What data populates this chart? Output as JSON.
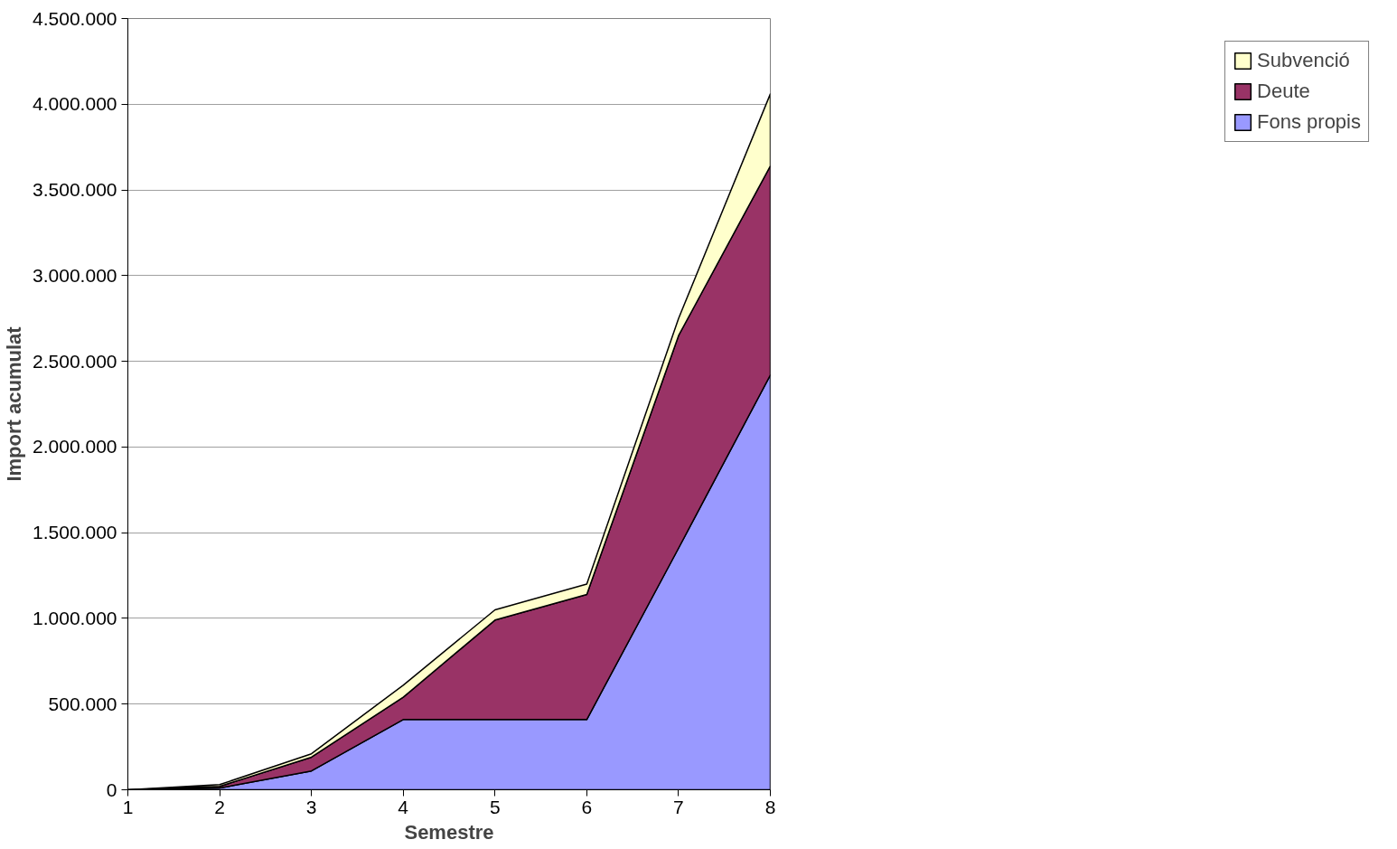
{
  "chart_data": {
    "type": "area",
    "stacked": true,
    "xlabel": "Semestre",
    "ylabel": "Import acumulat",
    "x": [
      1,
      2,
      3,
      4,
      5,
      6,
      7,
      8
    ],
    "series": [
      {
        "name": "Fons propis",
        "color": "#9999ff",
        "values": [
          0,
          10000,
          110000,
          410000,
          410000,
          410000,
          1410000,
          2420000
        ]
      },
      {
        "name": "Deute",
        "color": "#993366",
        "values": [
          0,
          10000,
          80000,
          130000,
          580000,
          730000,
          1240000,
          1220000
        ]
      },
      {
        "name": "Subvenció",
        "color": "#ffffcc",
        "values": [
          0,
          10000,
          20000,
          70000,
          60000,
          60000,
          100000,
          420000
        ]
      }
    ],
    "xlim": [
      1,
      8
    ],
    "xticks": [
      1,
      2,
      3,
      4,
      5,
      6,
      7,
      8
    ],
    "ylim": [
      0,
      4500000
    ],
    "yticks": [
      {
        "value": 0,
        "label": "0"
      },
      {
        "value": 500000,
        "label": "500.000"
      },
      {
        "value": 1000000,
        "label": "1.000.000"
      },
      {
        "value": 1500000,
        "label": "1.500.000"
      },
      {
        "value": 2000000,
        "label": "2.000.000"
      },
      {
        "value": 2500000,
        "label": "2.500.000"
      },
      {
        "value": 3000000,
        "label": "3.000.000"
      },
      {
        "value": 3500000,
        "label": "3.500.000"
      },
      {
        "value": 4000000,
        "label": "4.000.000"
      },
      {
        "value": 4500000,
        "label": "4.500.000"
      }
    ],
    "grid": "y",
    "legend": "right"
  }
}
